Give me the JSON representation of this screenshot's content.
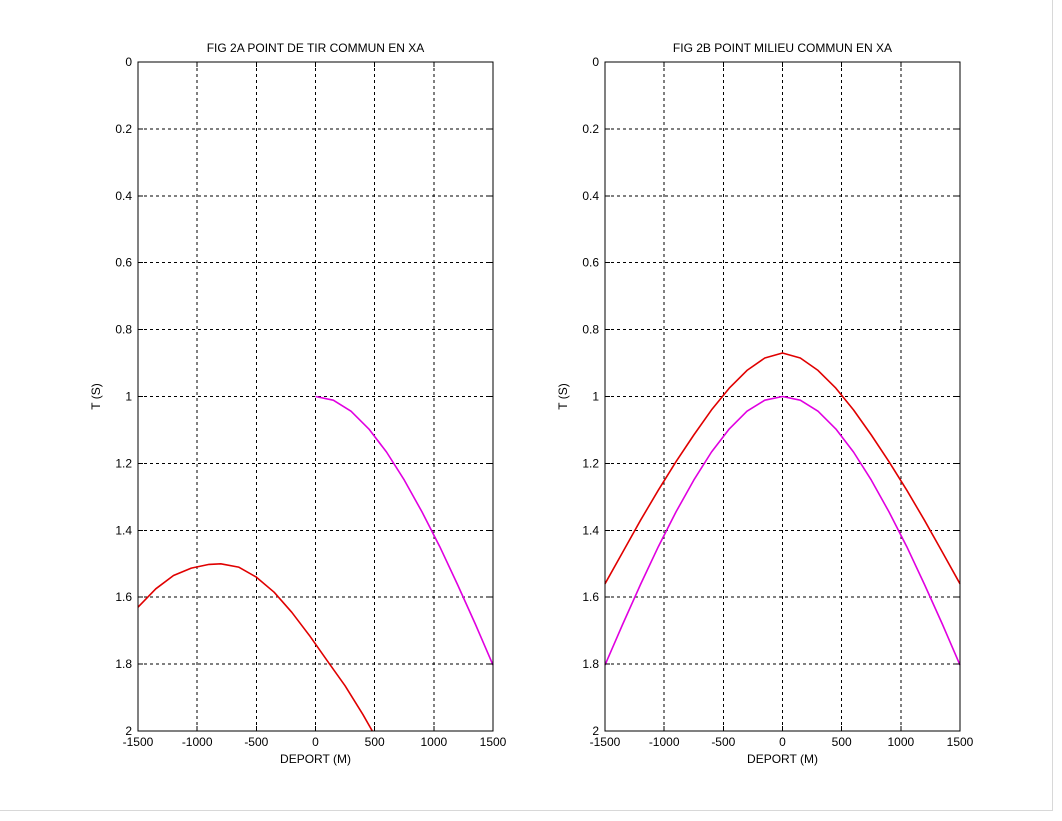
{
  "colors": {
    "background": "#ffffff",
    "axes": "#000000",
    "grid": "#000000",
    "red_series": "#e00000",
    "magenta_series": "#e000e0"
  },
  "chart_data": [
    {
      "type": "line",
      "title": "FIG 2A POINT DE TIR COMMUN EN XA",
      "xlabel": "DEPORT (M)",
      "ylabel": "T (S)",
      "xlim": [
        -1500,
        1500
      ],
      "ylim": [
        0,
        2
      ],
      "y_reversed": true,
      "grid": true,
      "xticks": [
        "-1500",
        "-1000",
        "-500",
        "0",
        "500",
        "1000",
        "1500"
      ],
      "yticks": [
        "0",
        "0.2",
        "0.4",
        "0.6",
        "0.8",
        "1",
        "1.2",
        "1.4",
        "1.6",
        "1.8",
        "2"
      ],
      "series": [
        {
          "color": "#e00000",
          "x": [
            -1500,
            -1350,
            -1200,
            -1050,
            -900,
            -800,
            -650,
            -500,
            -350,
            -200,
            -50,
            100,
            250,
            400,
            480
          ],
          "y": [
            1.63,
            1.575,
            1.535,
            1.513,
            1.502,
            1.5,
            1.51,
            1.54,
            1.585,
            1.645,
            1.715,
            1.79,
            1.865,
            1.95,
            2.0
          ]
        },
        {
          "color": "#e000e0",
          "x": [
            0,
            150,
            300,
            450,
            600,
            750,
            900,
            1050,
            1200,
            1350,
            1500
          ],
          "y": [
            1.0,
            1.011,
            1.044,
            1.097,
            1.166,
            1.25,
            1.345,
            1.449,
            1.562,
            1.68,
            1.803
          ]
        }
      ]
    },
    {
      "type": "line",
      "title": "FIG 2B POINT MILIEU COMMUN EN XA",
      "xlabel": "DEPORT (M)",
      "ylabel": "T (S)",
      "xlim": [
        -1500,
        1500
      ],
      "ylim": [
        0,
        2
      ],
      "y_reversed": true,
      "grid": true,
      "xticks": [
        "-1500",
        "-1000",
        "-500",
        "0",
        "500",
        "1000",
        "1500"
      ],
      "yticks": [
        "0",
        "0.2",
        "0.4",
        "0.6",
        "0.8",
        "1",
        "1.2",
        "1.4",
        "1.6",
        "1.8",
        "2"
      ],
      "series": [
        {
          "color": "#e00000",
          "x": [
            -1500,
            -1350,
            -1200,
            -1050,
            -900,
            -750,
            -600,
            -450,
            -300,
            -150,
            0,
            150,
            300,
            450,
            600,
            750,
            900,
            1050,
            1200,
            1350,
            1500
          ],
          "y": [
            1.56,
            1.465,
            1.37,
            1.28,
            1.195,
            1.115,
            1.04,
            0.975,
            0.922,
            0.885,
            0.87,
            0.885,
            0.922,
            0.975,
            1.04,
            1.115,
            1.195,
            1.28,
            1.37,
            1.465,
            1.56
          ]
        },
        {
          "color": "#e000e0",
          "x": [
            -1500,
            -1350,
            -1200,
            -1050,
            -900,
            -750,
            -600,
            -450,
            -300,
            -150,
            0,
            150,
            300,
            450,
            600,
            750,
            900,
            1050,
            1200,
            1350,
            1500
          ],
          "y": [
            1.803,
            1.68,
            1.562,
            1.449,
            1.345,
            1.25,
            1.166,
            1.097,
            1.044,
            1.011,
            1.0,
            1.011,
            1.044,
            1.097,
            1.166,
            1.25,
            1.345,
            1.449,
            1.562,
            1.68,
            1.803
          ]
        }
      ]
    }
  ]
}
